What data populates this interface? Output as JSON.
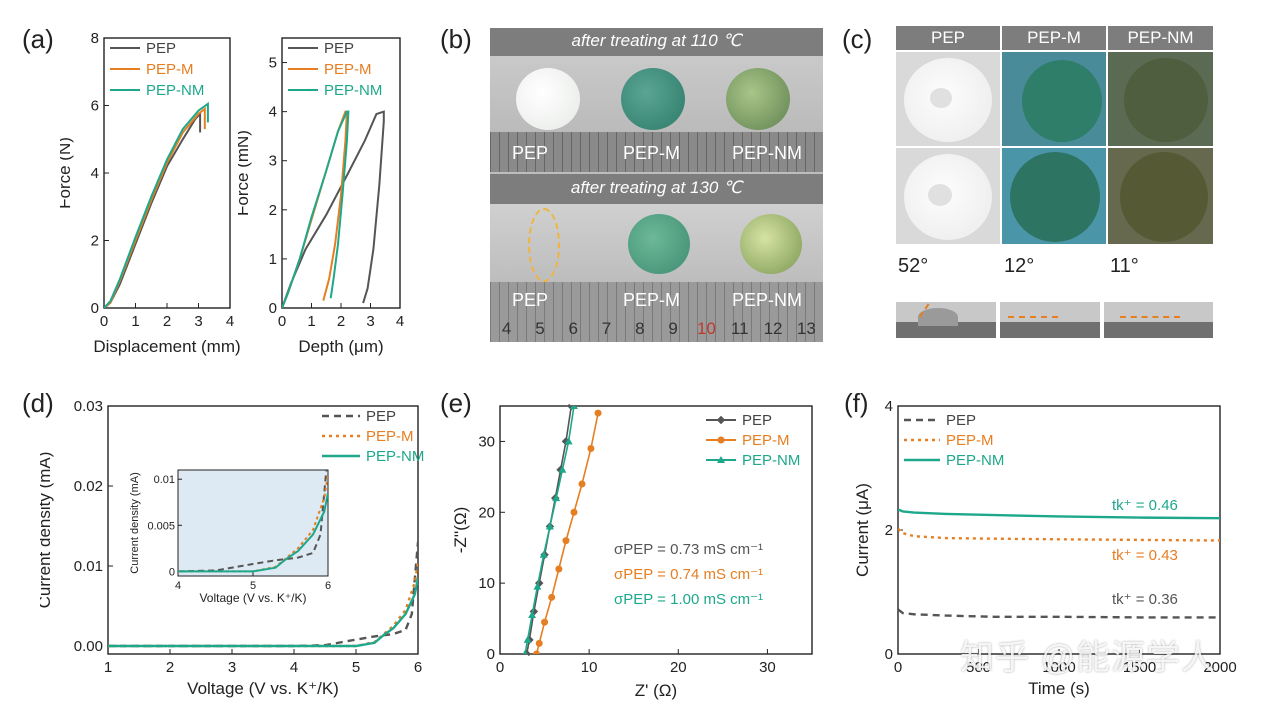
{
  "labels": {
    "a": "(a)",
    "b": "(b)",
    "c": "(c)",
    "d": "(d)",
    "e": "(e)",
    "f": "(f)"
  },
  "colors": {
    "pep": "#555555",
    "pepm": "#e67e22",
    "pepnm": "#1ea88b"
  },
  "panel_b": {
    "banner_top": "after treating at 110 ℃",
    "banner_bottom": "after treating at 130 ℃",
    "samples": [
      "PEP",
      "PEP-M",
      "PEP-NM"
    ],
    "ruler_numbers": [
      "4",
      "5",
      "6",
      "7",
      "8",
      "9",
      "10",
      "11",
      "12",
      "13"
    ]
  },
  "panel_c": {
    "headers": [
      "PEP",
      "PEP-M",
      "PEP-NM"
    ],
    "angles": [
      "52°",
      "12°",
      "11°"
    ]
  },
  "watermark": "知乎 @能源学人",
  "chart_data": [
    {
      "id": "a-left",
      "type": "line",
      "xlabel": "Displacement (mm)",
      "ylabel": "Force (N)",
      "xlim": [
        0,
        4
      ],
      "ylim": [
        0,
        8
      ],
      "xticks": [
        "0",
        "1",
        "2",
        "3",
        "4"
      ],
      "yticks": [
        "0",
        "2",
        "4",
        "6",
        "8"
      ],
      "legend": "top-left",
      "series": [
        {
          "name": "PEP",
          "color": "#555555",
          "x": [
            0,
            0.2,
            0.5,
            1,
            1.5,
            2,
            2.5,
            2.9,
            3.05,
            3.05
          ],
          "y": [
            0,
            0.15,
            0.7,
            1.9,
            3.1,
            4.2,
            5.0,
            5.6,
            5.75,
            5.2
          ]
        },
        {
          "name": "PEP-M",
          "color": "#e67e22",
          "x": [
            0,
            0.2,
            0.5,
            1,
            1.5,
            2,
            2.5,
            3.0,
            3.2,
            3.2
          ],
          "y": [
            0,
            0.15,
            0.8,
            2.0,
            3.2,
            4.3,
            5.2,
            5.75,
            5.9,
            5.3
          ]
        },
        {
          "name": "PEP-NM",
          "color": "#1ea88b",
          "x": [
            0,
            0.2,
            0.5,
            1,
            1.5,
            2,
            2.5,
            3.0,
            3.3,
            3.3
          ],
          "y": [
            0,
            0.2,
            0.85,
            2.1,
            3.3,
            4.4,
            5.3,
            5.85,
            6.05,
            5.5
          ]
        }
      ]
    },
    {
      "id": "a-right",
      "type": "line",
      "xlabel": "Depth (μm)",
      "ylabel": "Force (mN)",
      "xlim": [
        0,
        4
      ],
      "ylim": [
        0,
        5.5
      ],
      "xticks": [
        "0",
        "1",
        "2",
        "3",
        "4"
      ],
      "yticks": [
        "0",
        "1",
        "2",
        "3",
        "4",
        "5"
      ],
      "legend": "top-left",
      "series": [
        {
          "name": "PEP",
          "color": "#555555",
          "x": [
            0,
            0.3,
            0.8,
            1.5,
            2.2,
            2.8,
            3.2,
            3.45,
            3.45,
            3.3,
            3.1,
            2.9,
            2.75
          ],
          "y": [
            0,
            0.5,
            1.2,
            1.9,
            2.7,
            3.4,
            3.95,
            4.0,
            3.8,
            2.5,
            1.2,
            0.4,
            0.1
          ]
        },
        {
          "name": "PEP-M",
          "color": "#e67e22",
          "x": [
            0,
            0.2,
            0.6,
            1.0,
            1.5,
            1.9,
            2.15,
            2.2,
            2.15,
            2.0,
            1.8,
            1.6,
            1.4
          ],
          "y": [
            0,
            0.3,
            1.0,
            1.8,
            2.8,
            3.6,
            4.0,
            4.0,
            3.4,
            2.3,
            1.3,
            0.6,
            0.15
          ]
        },
        {
          "name": "PEP-NM",
          "color": "#1ea88b",
          "x": [
            0,
            0.2,
            0.6,
            1.0,
            1.5,
            1.9,
            2.2,
            2.25,
            2.2,
            2.05,
            1.9,
            1.75,
            1.65
          ],
          "y": [
            0,
            0.3,
            1.0,
            1.85,
            2.8,
            3.6,
            4.0,
            4.0,
            3.4,
            2.3,
            1.3,
            0.6,
            0.2
          ]
        }
      ]
    },
    {
      "id": "d",
      "type": "line",
      "xlabel": "Voltage (V vs. K⁺/K)",
      "ylabel": "Current density (mA)",
      "xlim": [
        1,
        6
      ],
      "ylim": [
        -0.001,
        0.03
      ],
      "xticks": [
        "1",
        "2",
        "3",
        "4",
        "5",
        "6"
      ],
      "yticks": [
        "0.00",
        "0.01",
        "0.02",
        "0.03"
      ],
      "legend": "top-right",
      "series": [
        {
          "name": "PEP",
          "color": "#555555",
          "x": [
            1,
            2,
            3,
            4,
            4.5,
            5.0,
            5.3,
            5.6,
            5.8,
            5.9,
            6.0
          ],
          "y": [
            0,
            0,
            0,
            0,
            0.0001,
            0.0008,
            0.0012,
            0.0015,
            0.002,
            0.004,
            0.013
          ]
        },
        {
          "name": "PEP-M",
          "color": "#e67e22",
          "x": [
            1,
            2,
            3,
            4,
            5,
            5.3,
            5.45,
            5.6,
            5.8,
            5.95,
            6.0
          ],
          "y": [
            0,
            0,
            0,
            0,
            0,
            0.0005,
            0.0015,
            0.0025,
            0.0045,
            0.008,
            0.0105
          ]
        },
        {
          "name": "PEP-NM",
          "color": "#1ea88b",
          "x": [
            1,
            2,
            3,
            4,
            5,
            5.3,
            5.45,
            5.6,
            5.8,
            5.95,
            6.0
          ],
          "y": [
            0,
            0,
            0,
            0,
            0,
            0.0004,
            0.0014,
            0.0022,
            0.004,
            0.0065,
            0.0085
          ]
        }
      ],
      "inset": {
        "xlabel": "Voltage (V vs. K⁺/K)",
        "ylabel": "Current density (mA)",
        "xlim": [
          4,
          6
        ],
        "ylim": [
          -0.0005,
          0.011
        ],
        "xticks": [
          "4",
          "5",
          "6"
        ],
        "yticks": [
          "0",
          "0.005",
          "0.01"
        ]
      }
    },
    {
      "id": "e",
      "type": "line",
      "xlabel": "Z' (Ω)",
      "ylabel": "-Z''(Ω)",
      "xlim": [
        0,
        35
      ],
      "ylim": [
        0,
        35
      ],
      "xticks": [
        "0",
        "10",
        "20",
        "30"
      ],
      "yticks": [
        "0",
        "10",
        "20",
        "30"
      ],
      "legend": "top-right",
      "annotations": [
        "σPEP = 0.73 mS cm⁻¹",
        "σPEP = 0.74 mS cm⁻¹",
        "σPEP = 1.00 mS cm⁻¹"
      ],
      "series": [
        {
          "name": "PEP",
          "color": "#555555",
          "x": [
            3.0,
            3.3,
            3.8,
            4.4,
            5.0,
            5.6,
            6.2,
            6.8,
            7.4,
            8.0
          ],
          "y": [
            0,
            2,
            6,
            10,
            14,
            18,
            22,
            26,
            30,
            35
          ]
        },
        {
          "name": "PEP-M",
          "color": "#e67e22",
          "x": [
            4.1,
            4.4,
            5.0,
            5.8,
            6.6,
            7.4,
            8.3,
            9.2,
            10.2,
            11.0
          ],
          "y": [
            0,
            1.5,
            4.5,
            8,
            12,
            16,
            20,
            24,
            29,
            34
          ]
        },
        {
          "name": "PEP-NM",
          "color": "#1ea88b",
          "x": [
            2.8,
            3.1,
            3.6,
            4.2,
            4.9,
            5.6,
            6.3,
            7.0,
            7.7,
            8.3
          ],
          "y": [
            0,
            2,
            5.5,
            9.5,
            14,
            18,
            22,
            26,
            30,
            35
          ]
        }
      ]
    },
    {
      "id": "f",
      "type": "line",
      "xlabel": "Time (s)",
      "ylabel": "Current (μA)",
      "xlim": [
        0,
        2000
      ],
      "ylim": [
        0,
        4
      ],
      "xticks": [
        "0",
        "500",
        "1000",
        "1500",
        "2000"
      ],
      "yticks": [
        "0",
        "2",
        "4"
      ],
      "legend": "top-left",
      "annotations": [
        "tk⁺ = 0.46",
        "tk⁺ = 0.43",
        "tk⁺ = 0.36"
      ],
      "series": [
        {
          "name": "PEP",
          "color": "#555555",
          "x": [
            0,
            30,
            100,
            300,
            600,
            1000,
            1500,
            2000
          ],
          "y": [
            0.72,
            0.66,
            0.64,
            0.62,
            0.6,
            0.6,
            0.59,
            0.59
          ]
        },
        {
          "name": "PEP-M",
          "color": "#e67e22",
          "x": [
            0,
            30,
            100,
            300,
            600,
            1000,
            1500,
            2000
          ],
          "y": [
            2.02,
            1.95,
            1.9,
            1.87,
            1.86,
            1.85,
            1.84,
            1.83
          ]
        },
        {
          "name": "PEP-NM",
          "color": "#1ea88b",
          "x": [
            0,
            30,
            100,
            300,
            600,
            1000,
            1500,
            2000
          ],
          "y": [
            2.33,
            2.3,
            2.28,
            2.26,
            2.24,
            2.22,
            2.2,
            2.19
          ]
        }
      ]
    }
  ]
}
